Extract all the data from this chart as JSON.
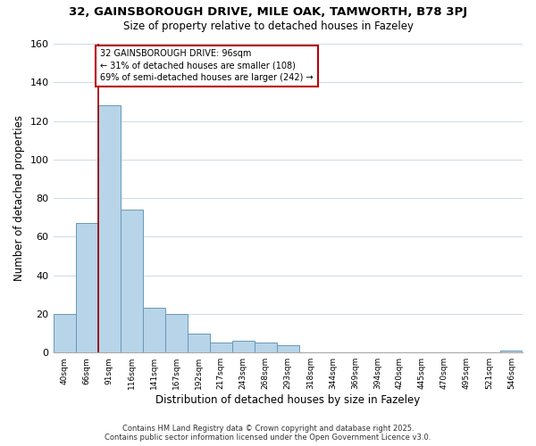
{
  "title": "32, GAINSBOROUGH DRIVE, MILE OAK, TAMWORTH, B78 3PJ",
  "subtitle": "Size of property relative to detached houses in Fazeley",
  "xlabel": "Distribution of detached houses by size in Fazeley",
  "ylabel": "Number of detached properties",
  "bar_color": "#b8d4e8",
  "bar_edge_color": "#6699bb",
  "background_color": "#ffffff",
  "grid_color": "#d0dde8",
  "bin_labels": [
    "40sqm",
    "66sqm",
    "91sqm",
    "116sqm",
    "141sqm",
    "167sqm",
    "192sqm",
    "217sqm",
    "243sqm",
    "268sqm",
    "293sqm",
    "318sqm",
    "344sqm",
    "369sqm",
    "394sqm",
    "420sqm",
    "445sqm",
    "470sqm",
    "495sqm",
    "521sqm",
    "546sqm"
  ],
  "bar_heights": [
    20,
    67,
    128,
    74,
    23,
    20,
    10,
    5,
    6,
    5,
    4,
    0,
    0,
    0,
    0,
    0,
    0,
    0,
    0,
    0,
    1
  ],
  "ylim": [
    0,
    160
  ],
  "yticks": [
    0,
    20,
    40,
    60,
    80,
    100,
    120,
    140,
    160
  ],
  "property_line_color": "#990000",
  "annotation_line1": "32 GAINSBOROUGH DRIVE: 96sqm",
  "annotation_line2": "← 31% of detached houses are smaller (108)",
  "annotation_line3": "69% of semi-detached houses are larger (242) →",
  "footer_line1": "Contains HM Land Registry data © Crown copyright and database right 2025.",
  "footer_line2": "Contains public sector information licensed under the Open Government Licence v3.0."
}
